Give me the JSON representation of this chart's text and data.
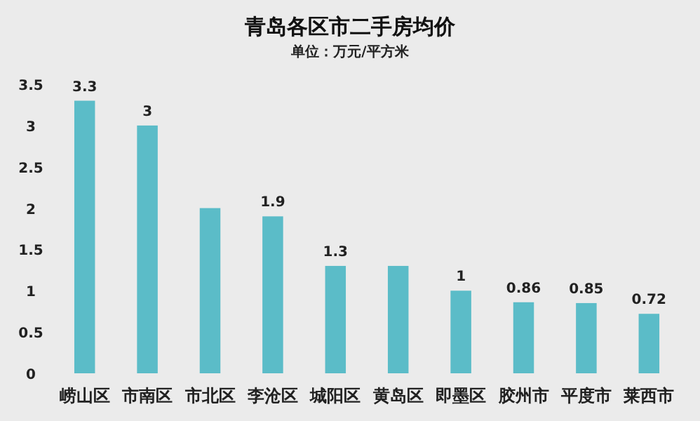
{
  "chart_data": {
    "type": "bar",
    "title": "青岛各区市二手房均价",
    "subtitle": "单位：万元/平方米",
    "categories": [
      "崂山区",
      "市南区",
      "市北区",
      "李沧区",
      "城阳区",
      "黄岛区",
      "即墨区",
      "胶州市",
      "平度市",
      "莱西市"
    ],
    "values": [
      3.3,
      3.0,
      2.0,
      1.9,
      1.3,
      1.3,
      1.0,
      0.86,
      0.85,
      0.72
    ],
    "value_labels": [
      "3.3",
      "3",
      null,
      "1.9",
      "1.3",
      null,
      "1",
      "0.86",
      "0.85",
      "0.72"
    ],
    "color": "#5bbcc8",
    "ylim": [
      0,
      3.5
    ],
    "yticks": [
      0,
      0.5,
      1,
      1.5,
      2,
      2.5,
      3,
      3.5
    ],
    "grid": false
  }
}
